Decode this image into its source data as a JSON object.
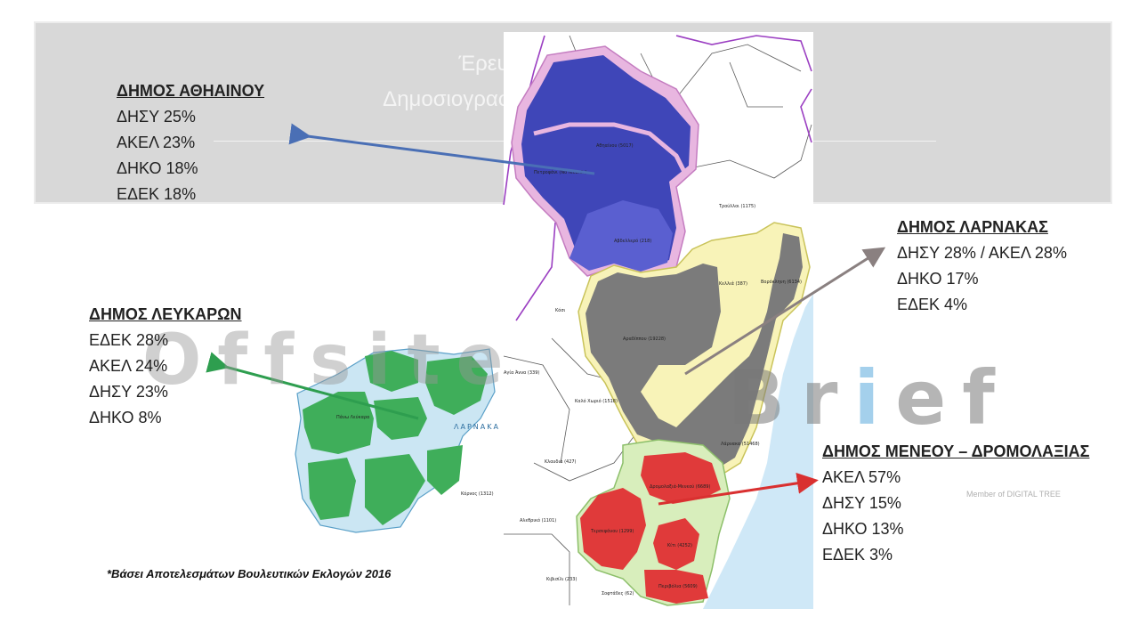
{
  "header": {
    "title_line1": "Έρευνα – Γνωμοδότηση",
    "title_line2": "Δημοσιογραφικές Ομάδες Offsite & Brief"
  },
  "watermarks": {
    "offsite": "Offsite",
    "brief_pre": "Br",
    "brief_i": "i",
    "brief_post": "ef",
    "member": "Member of DIGITAL TREE"
  },
  "blocks": {
    "athienou": {
      "title": "ΔΗΜΟΣ ΑΘΗΑΙΝΟΥ",
      "lines": [
        "ΔΗΣΥ 25%",
        "ΑΚΕΛ 23%",
        "ΔΗΚΟ 18%",
        "ΕΔΕΚ 18%"
      ]
    },
    "lefkara": {
      "title": "ΔΗΜΟΣ ΛΕΥΚΑΡΩΝ",
      "lines": [
        "ΕΔΕΚ 28%",
        "ΑΚΕΛ 24%",
        "ΔΗΣΥ 23%",
        "ΔΗΚΟ 8%"
      ]
    },
    "larnaca": {
      "title": "ΔΗΜΟΣ ΛΑΡΝΑΚΑΣ",
      "lines": [
        "ΔΗΣΥ 28% / ΑΚΕΛ 28%",
        "ΔΗΚΟ 17%",
        "ΕΔΕΚ 4%"
      ]
    },
    "meneou": {
      "title": "ΔΗΜΟΣ ΜΕΝΕΟΥ – ΔΡΟΜΟΛΑΞΙΑΣ",
      "lines": [
        "ΑΚΕΛ 57%",
        "ΔΗΣΥ 15%",
        "ΔΗΚΟ 13%",
        "ΕΔΕΚ 3%"
      ]
    }
  },
  "footnote": "*Βάσει Αποτελεσμάτων Βουλευτικών Εκλογών 2016",
  "map_labels": {
    "athienou": "Αθηαίνου (5017)",
    "avdellero": "Αβδελλερό (218)",
    "aradippou": "Αραδίππου (19228)",
    "larnaka": "Λάρνακα (51468)",
    "dromolaxia": "Δρομολαξιά-Μενεού (6689)",
    "tersefanou": "Τερσεφάνου (1299)",
    "kiti": "Κίτι (4252)",
    "perivolia": "Περιβόλια (5609)",
    "pano_lefkara": "Πάνω Λεύκαρα",
    "larnaca_region": "ΛΑΡΝΑΚΑ",
    "troulloi": "Τρούλλοι (1175)",
    "kellia": "Κελλιά (387)",
    "voroklini": "Βορόκληνη (6134)",
    "kalo_chorio": "Καλό Χωριό (1518)",
    "klavdia": "Κλαυδιά (427)",
    "alethriko": "Αλεθρικό (1101)",
    "sofades": "Σοφτάδες (62)",
    "kivides": "Κιβισίλι (233)",
    "kochi": "Κόσι",
    "petrofani": "Πετροφάνι (No records)",
    "kornos": "Κόρνος (1312)",
    "agia_anna": "Αγία Άννα (339)"
  },
  "colors": {
    "akel": "#e03a3a",
    "disy": "#3f46b8",
    "diko": "#7b7b7b",
    "edek": "#3fae5a",
    "arrow_blue": "#4a6fb5",
    "arrow_green": "#2e9e4f",
    "arrow_gray": "#8a8080",
    "arrow_red": "#d93030",
    "sea": "#cfe8f7"
  }
}
